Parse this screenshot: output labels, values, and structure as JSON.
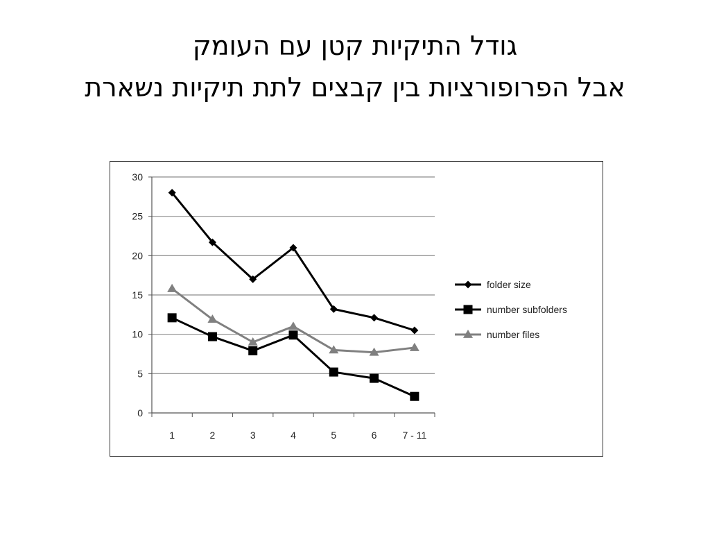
{
  "slide": {
    "title_line1": "גודל התיקיות קטן עם העומק",
    "title_line2": "אבל הפרופורציות בין קבצים לתת תיקיות נשארת"
  },
  "chart_data": {
    "type": "line",
    "categories": [
      "1",
      "2",
      "3",
      "4",
      "5",
      "6",
      "7 - 11"
    ],
    "series": [
      {
        "name": "folder size",
        "values": [
          28,
          21.7,
          17,
          21,
          13.2,
          12.1,
          10.5
        ],
        "color": "#000000",
        "marker": "diamond"
      },
      {
        "name": "number subfolders",
        "values": [
          12.1,
          9.7,
          7.9,
          9.9,
          5.2,
          4.4,
          2.1
        ],
        "color": "#000000",
        "marker": "square"
      },
      {
        "name": "number files",
        "values": [
          15.8,
          11.9,
          9.0,
          11.0,
          8.0,
          7.7,
          8.3
        ],
        "color": "#808080",
        "marker": "triangle"
      }
    ],
    "y_ticks": [
      "0",
      "5",
      "10",
      "15",
      "20",
      "25",
      "30"
    ],
    "ylim": [
      0,
      30
    ],
    "grid": true,
    "legend_position": "right"
  }
}
